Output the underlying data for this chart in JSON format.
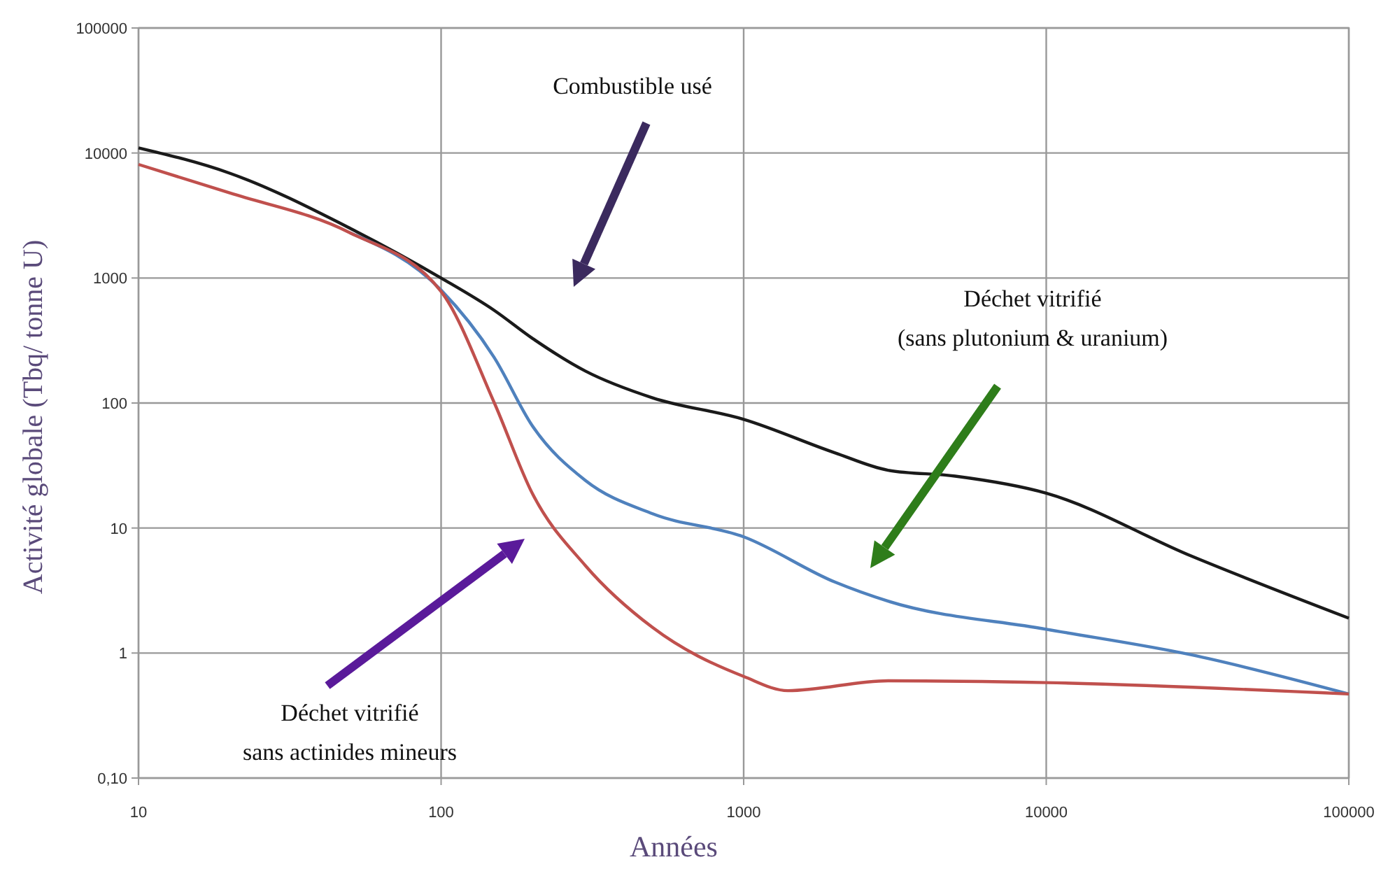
{
  "chart_data": {
    "type": "line",
    "xlabel": "Années",
    "ylabel": "Activité globale (Tbq/ tonne U)",
    "log": "xy",
    "grid": true,
    "marker": "none",
    "line_style": "solid",
    "xlim": [
      10,
      100000
    ],
    "xticks": [
      10,
      100,
      1000,
      10000,
      100000
    ],
    "ylim": [
      0.1,
      100000
    ],
    "yticks": [
      {
        "value": 0.1,
        "label": "0,10"
      },
      1,
      10,
      100,
      1000,
      10000,
      100000
    ],
    "series": [
      {
        "color": "#1a1a1a",
        "x": [
          10,
          20,
          50,
          100,
          150,
          200,
          300,
          500,
          1000,
          2000,
          3000,
          5000,
          10000,
          30000,
          100000
        ],
        "values": [
          11000,
          6900,
          2500,
          1000,
          550,
          330,
          180,
          110,
          74,
          40,
          29,
          26,
          19,
          6,
          1.9
        ]
      },
      {
        "color": "#4f81bd",
        "x": [
          50,
          100,
          150,
          200,
          300,
          500,
          1000,
          2000,
          3000,
          10000,
          30000,
          100000
        ],
        "values": [
          2300,
          800,
          230,
          66,
          24,
          13,
          8.5,
          3.7,
          2.6,
          1.55,
          0.97,
          0.47
        ]
      },
      {
        "color": "#c0504d",
        "x": [
          10,
          20,
          50,
          100,
          150,
          200,
          300,
          500,
          1000,
          1400,
          3000,
          10000,
          100000
        ],
        "values": [
          8100,
          4800,
          2300,
          780,
          100,
          19,
          5,
          1.6,
          0.65,
          0.5,
          0.6,
          0.58,
          0.47
        ]
      }
    ],
    "annotations": [
      "Combustible usé",
      "Déchet vitrifié\n(sans plutonium & uranium)",
      "Déchet vitrifié\nsans actinides mineurs"
    ]
  }
}
